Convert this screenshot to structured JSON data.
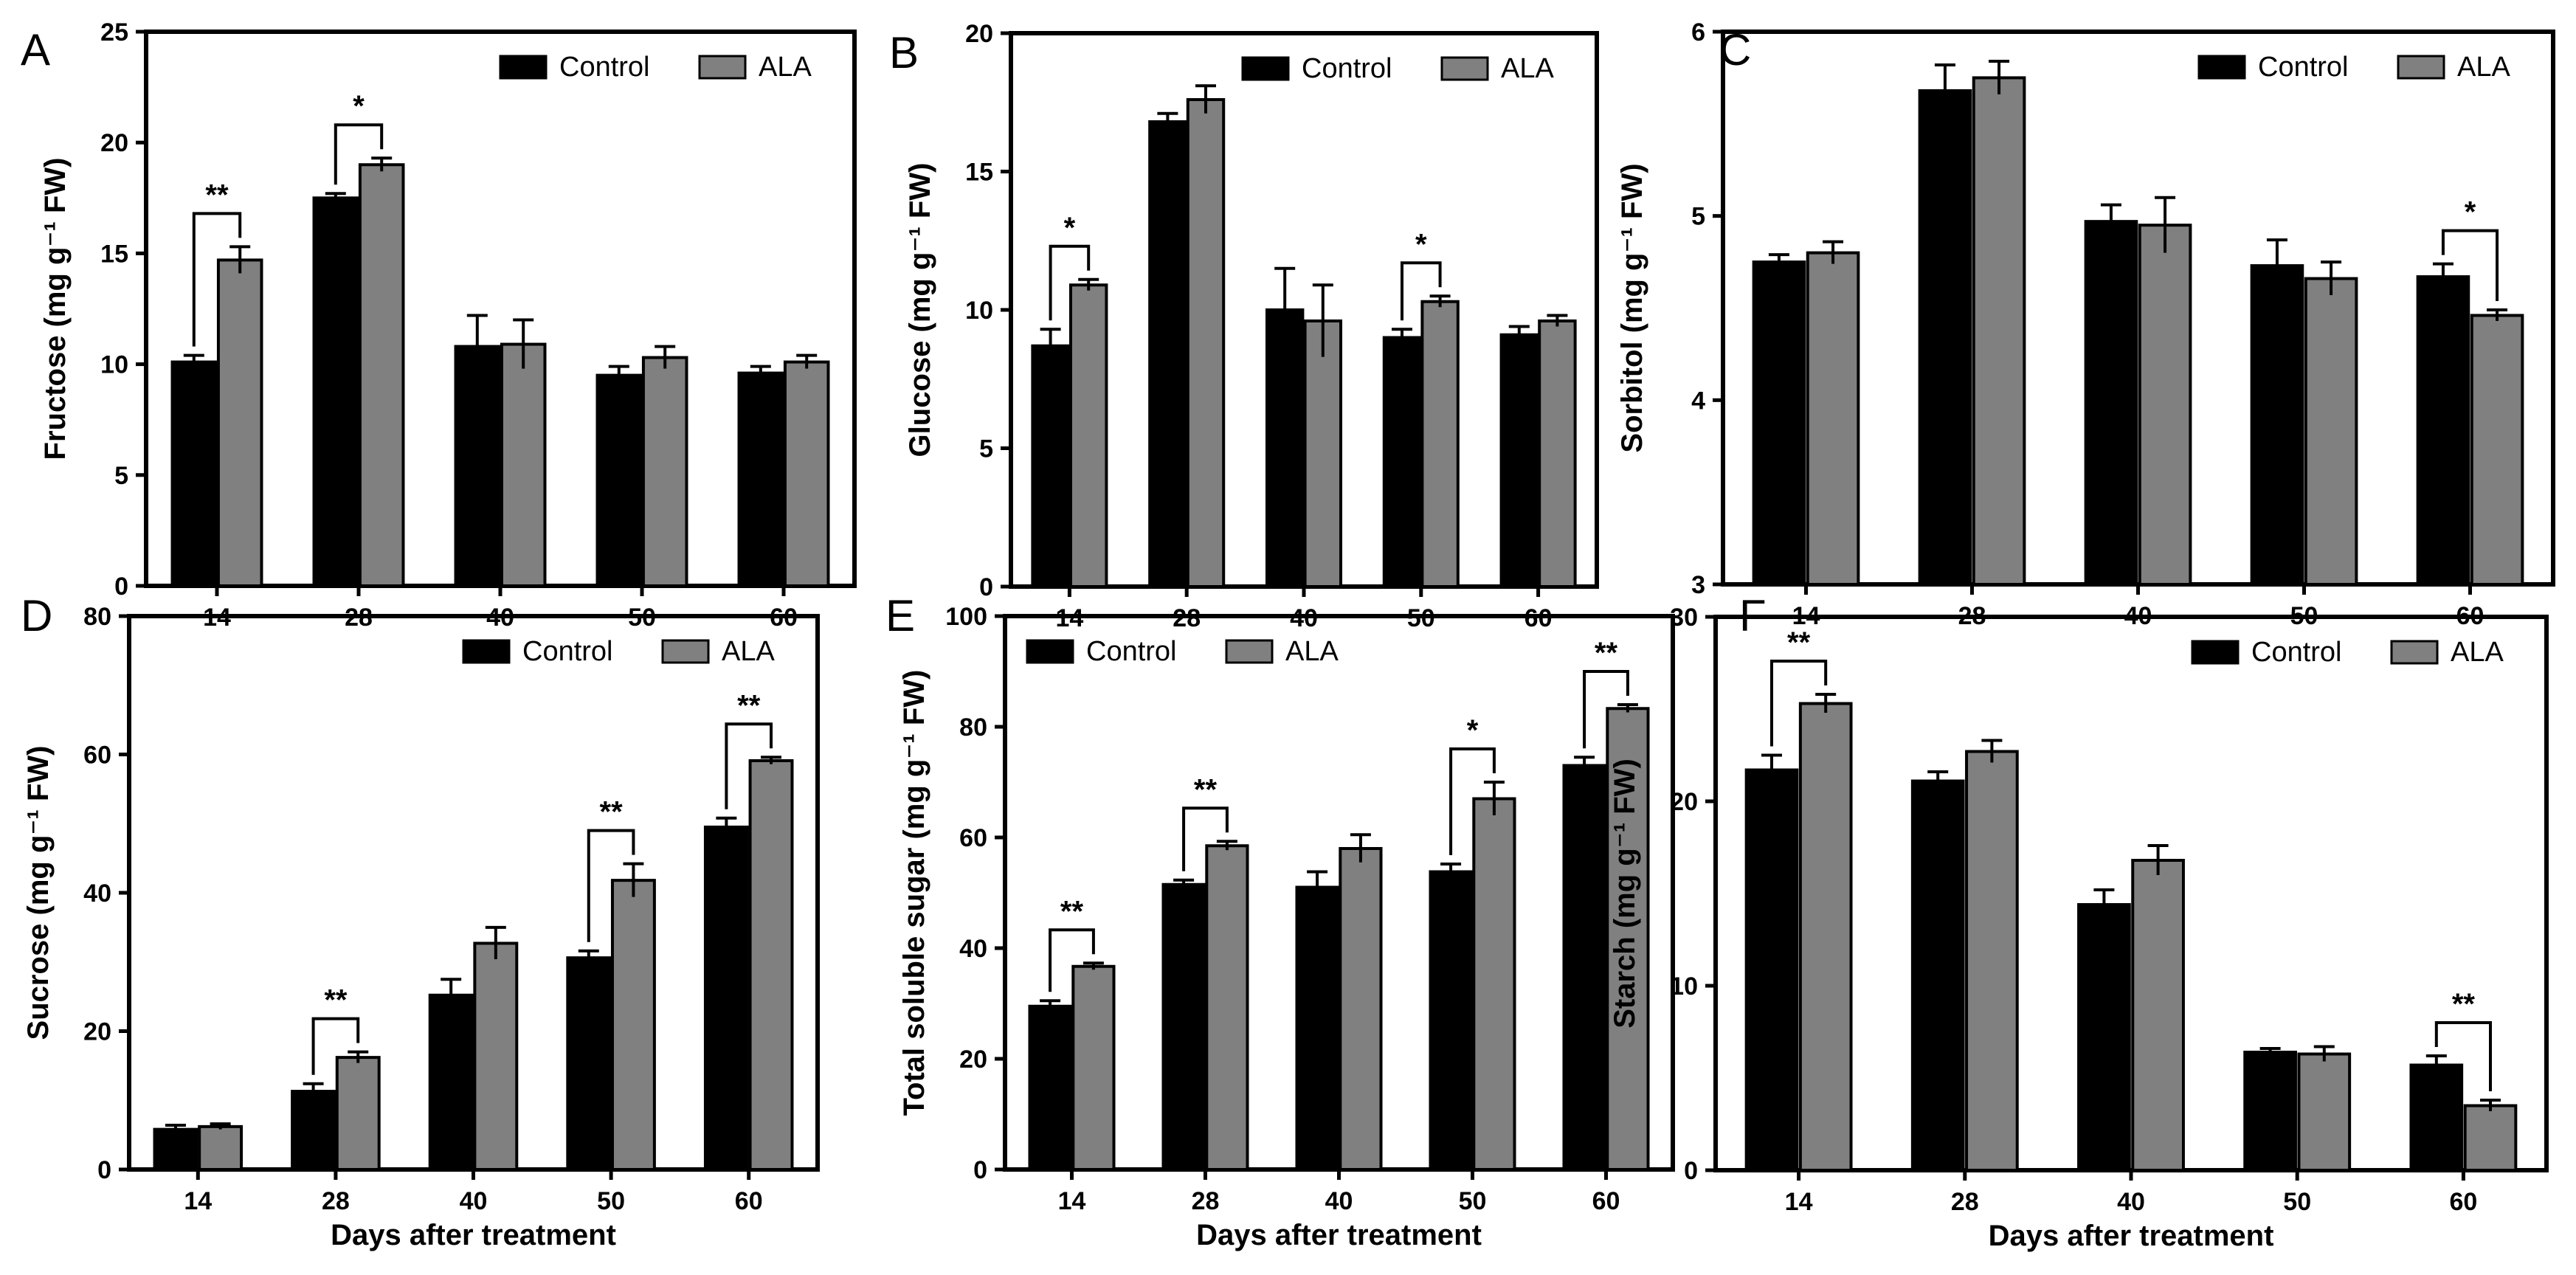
{
  "figure": {
    "shared_xlabel": "Days after treatment",
    "colors": {
      "control": "#000000",
      "ala": "#808080",
      "axis": "#000000"
    }
  },
  "chart_data": [
    {
      "panel": "A",
      "type": "bar",
      "categories": [
        "14",
        "28",
        "40",
        "50",
        "60"
      ],
      "ylabel": "Fructose (mg g⁻¹ FW)",
      "xlabel": "",
      "ylim": [
        0,
        25
      ],
      "yticks": [
        0,
        5,
        10,
        15,
        20,
        25
      ],
      "legend": [
        "Control",
        "ALA"
      ],
      "legend_position": "top-right",
      "series": [
        {
          "name": "Control",
          "values": [
            10.1,
            17.5,
            10.8,
            9.5,
            9.6
          ],
          "errors": [
            0.3,
            0.2,
            1.4,
            0.4,
            0.3
          ]
        },
        {
          "name": "ALA",
          "values": [
            14.7,
            19.0,
            10.9,
            10.3,
            10.1
          ],
          "errors": [
            0.6,
            0.3,
            1.1,
            0.5,
            0.3
          ]
        }
      ],
      "significance": [
        {
          "category": 0,
          "label": "**"
        },
        {
          "category": 1,
          "label": "*"
        }
      ]
    },
    {
      "panel": "B",
      "type": "bar",
      "categories": [
        "14",
        "28",
        "40",
        "50",
        "60"
      ],
      "ylabel": "Glucose (mg g⁻¹ FW)",
      "xlabel": "",
      "ylim": [
        0,
        20
      ],
      "yticks": [
        0,
        5,
        10,
        15,
        20
      ],
      "legend": [
        "Control",
        "ALA"
      ],
      "legend_position": "top-right",
      "series": [
        {
          "name": "Control",
          "values": [
            8.7,
            16.8,
            10.0,
            9.0,
            9.1
          ],
          "errors": [
            0.6,
            0.3,
            1.5,
            0.3,
            0.3
          ]
        },
        {
          "name": "ALA",
          "values": [
            10.9,
            17.6,
            9.6,
            10.3,
            9.6
          ],
          "errors": [
            0.2,
            0.5,
            1.3,
            0.2,
            0.2
          ]
        }
      ],
      "significance": [
        {
          "category": 0,
          "label": "*"
        },
        {
          "category": 3,
          "label": "*"
        }
      ]
    },
    {
      "panel": "C",
      "type": "bar",
      "categories": [
        "14",
        "28",
        "40",
        "50",
        "60"
      ],
      "ylabel": "Sorbitol (mg g⁻¹ FW)",
      "xlabel": "",
      "ylim": [
        3,
        6
      ],
      "yticks": [
        3,
        4,
        5,
        6
      ],
      "legend": [
        "Control",
        "ALA"
      ],
      "legend_position": "top-right",
      "series": [
        {
          "name": "Control",
          "values": [
            4.75,
            5.68,
            4.97,
            4.73,
            4.67
          ],
          "errors": [
            0.04,
            0.14,
            0.09,
            0.14,
            0.07
          ]
        },
        {
          "name": "ALA",
          "values": [
            4.8,
            5.75,
            4.95,
            4.66,
            4.46
          ],
          "errors": [
            0.06,
            0.09,
            0.15,
            0.09,
            0.03
          ]
        }
      ],
      "significance": [
        {
          "category": 4,
          "label": "*"
        }
      ]
    },
    {
      "panel": "D",
      "type": "bar",
      "categories": [
        "14",
        "28",
        "40",
        "50",
        "60"
      ],
      "ylabel": "Sucrose (mg g⁻¹ FW)",
      "xlabel": "Days after treatment",
      "ylim": [
        0,
        80
      ],
      "yticks": [
        0,
        20,
        40,
        60,
        80
      ],
      "legend": [
        "Control",
        "ALA"
      ],
      "legend_position": "top-right",
      "series": [
        {
          "name": "Control",
          "values": [
            5.8,
            11.3,
            25.2,
            30.6,
            49.5
          ],
          "errors": [
            0.6,
            1.1,
            2.3,
            1.0,
            1.3
          ]
        },
        {
          "name": "ALA",
          "values": [
            6.2,
            16.2,
            32.7,
            41.8,
            59.1
          ],
          "errors": [
            0.4,
            0.8,
            2.3,
            2.4,
            0.5
          ]
        }
      ],
      "significance": [
        {
          "category": 1,
          "label": "**"
        },
        {
          "category": 3,
          "label": "**"
        },
        {
          "category": 4,
          "label": "**"
        }
      ]
    },
    {
      "panel": "E",
      "type": "bar",
      "categories": [
        "14",
        "28",
        "40",
        "50",
        "60"
      ],
      "ylabel": "Total soluble sugar (mg g⁻¹ FW)",
      "xlabel": "Days after treatment",
      "ylim": [
        0,
        100
      ],
      "yticks": [
        0,
        20,
        40,
        60,
        80,
        100
      ],
      "legend": [
        "Control",
        "ALA"
      ],
      "legend_position": "top-left",
      "series": [
        {
          "name": "Control",
          "values": [
            29.5,
            51.5,
            51.0,
            53.8,
            73.0
          ],
          "errors": [
            1.0,
            0.8,
            2.8,
            1.4,
            1.5
          ]
        },
        {
          "name": "ALA",
          "values": [
            36.7,
            58.5,
            58.0,
            67.0,
            83.3
          ],
          "errors": [
            0.6,
            0.8,
            2.5,
            3.0,
            0.7
          ]
        }
      ],
      "significance": [
        {
          "category": 0,
          "label": "**"
        },
        {
          "category": 1,
          "label": "**"
        },
        {
          "category": 3,
          "label": "*"
        },
        {
          "category": 4,
          "label": "**"
        }
      ]
    },
    {
      "panel": "F",
      "type": "bar",
      "categories": [
        "14",
        "28",
        "40",
        "50",
        "60"
      ],
      "ylabel": "Starch (mg g⁻¹ FW)",
      "xlabel": "Days after treatment",
      "ylim": [
        0,
        30
      ],
      "yticks": [
        0,
        10,
        20,
        30
      ],
      "legend": [
        "Control",
        "ALA"
      ],
      "legend_position": "top-right",
      "series": [
        {
          "name": "Control",
          "values": [
            21.7,
            21.1,
            14.4,
            6.4,
            5.7
          ],
          "errors": [
            0.8,
            0.5,
            0.8,
            0.2,
            0.5
          ]
        },
        {
          "name": "ALA",
          "values": [
            25.3,
            22.7,
            16.8,
            6.3,
            3.5
          ],
          "errors": [
            0.5,
            0.6,
            0.8,
            0.4,
            0.3
          ]
        }
      ],
      "significance": [
        {
          "category": 0,
          "label": "**"
        },
        {
          "category": 4,
          "label": "**"
        }
      ]
    }
  ]
}
